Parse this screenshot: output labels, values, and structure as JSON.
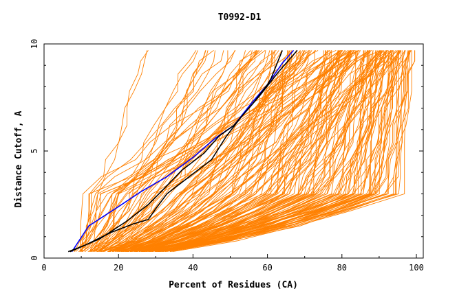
{
  "chart_data": {
    "type": "line",
    "title": "T0992-D1",
    "xlabel": "Percent of Residues (CA)",
    "ylabel": "Distance Cutoff, A",
    "xlim": [
      0,
      100
    ],
    "ylim": [
      0,
      10
    ],
    "x_ticks": [
      0,
      20,
      40,
      60,
      80,
      100
    ],
    "x_tick_labels": [
      "0",
      "20",
      "40",
      "60",
      "80",
      "100"
    ],
    "y_ticks": [
      0,
      5,
      10
    ],
    "y_tick_labels": [
      "0",
      "5",
      "10"
    ],
    "grid": false,
    "legend": "none",
    "background_curve_color": "#ff8000",
    "background_curve_count": 180,
    "background_curve_note_hidden": true,
    "series": [
      {
        "color": "#0000ff",
        "x": [
          7.5,
          12,
          20,
          26,
          33,
          40,
          46,
          51,
          56,
          60,
          64,
          67
        ],
        "y": [
          0.3,
          1.5,
          2.4,
          3.1,
          3.8,
          4.7,
          5.6,
          6.2,
          7.3,
          8.1,
          9.1,
          9.7
        ]
      },
      {
        "color": "#000000",
        "x": [
          7,
          15,
          22,
          28,
          32,
          37,
          43,
          47,
          51,
          56,
          60,
          61,
          64
        ],
        "y": [
          0.3,
          0.9,
          1.7,
          2.5,
          3.2,
          4.1,
          4.9,
          5.7,
          6.2,
          7.2,
          8.1,
          8.4,
          9.7
        ]
      },
      {
        "color": "#000000",
        "x": [
          6.5,
          11,
          18,
          24,
          28,
          30,
          33,
          39,
          45,
          49,
          53,
          58,
          63,
          68
        ],
        "y": [
          0.3,
          0.6,
          1.2,
          1.6,
          1.8,
          2.3,
          3.0,
          3.8,
          4.6,
          5.7,
          6.6,
          7.6,
          8.7,
          9.7
        ]
      }
    ]
  }
}
